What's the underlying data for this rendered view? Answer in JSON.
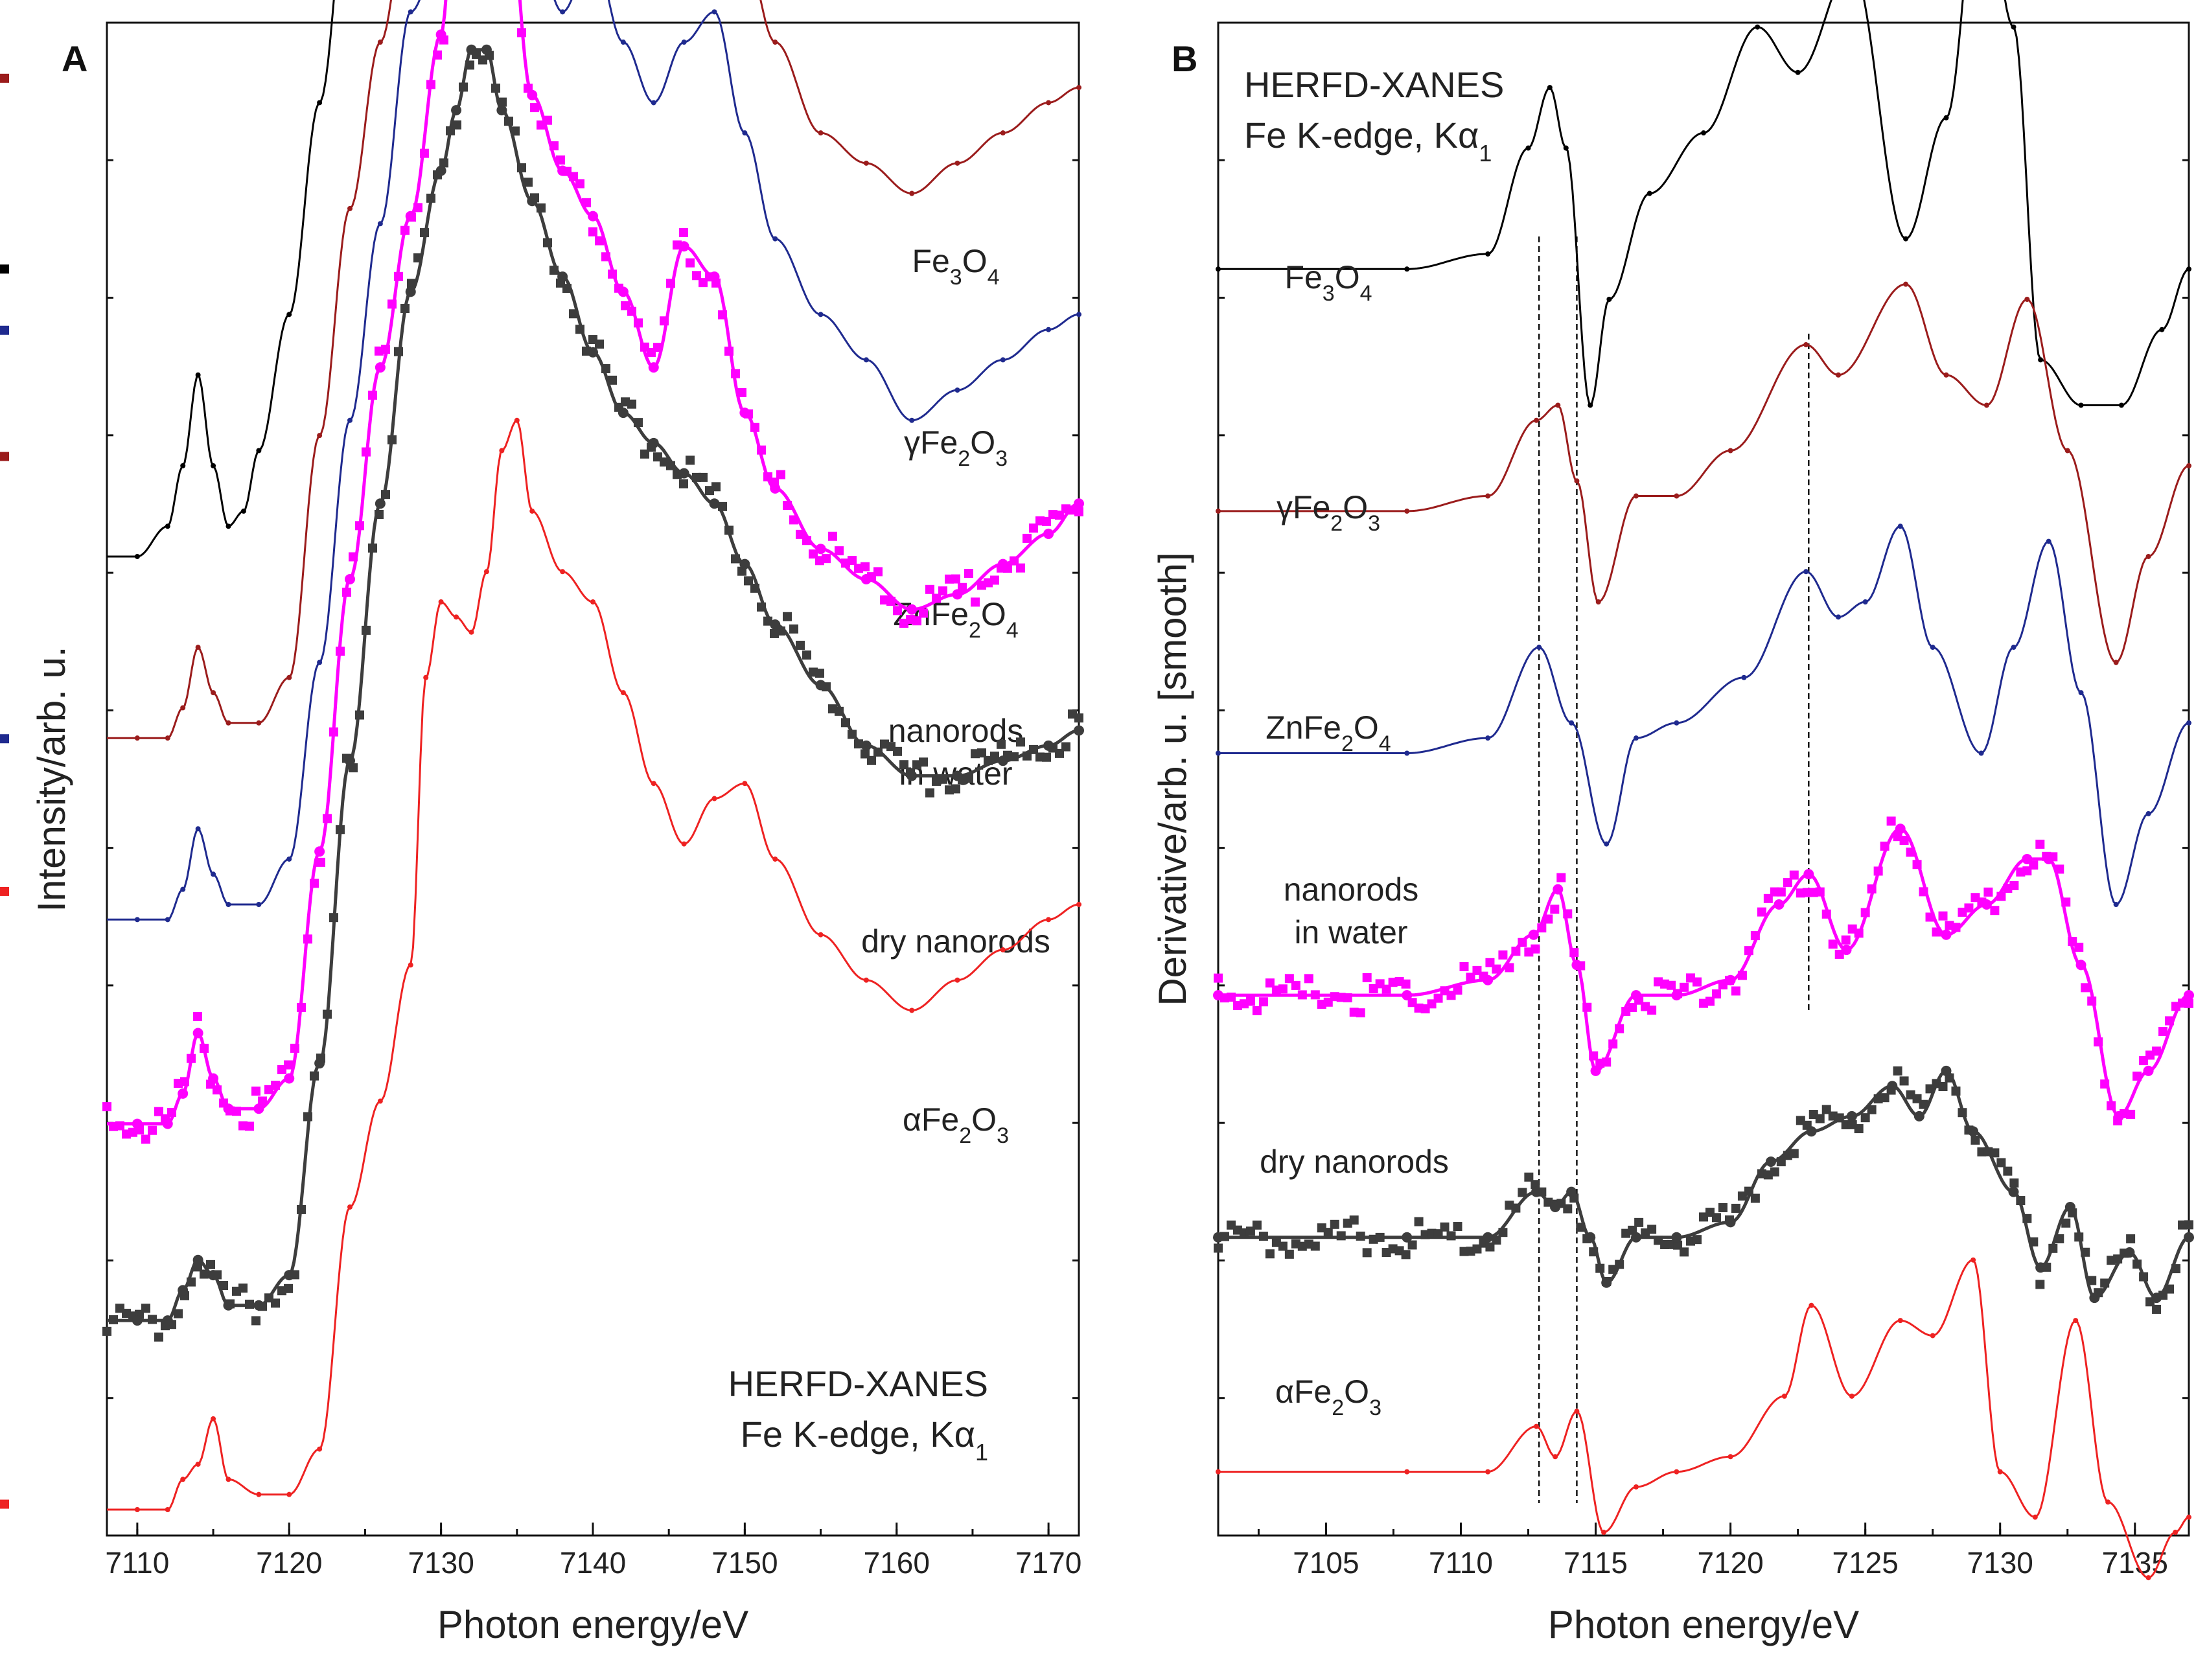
{
  "chart_data": [
    {
      "panel": "A",
      "type": "line",
      "xlabel": "Photon energy/eV",
      "ylabel": "Intensity/arb. u.",
      "xlim": [
        7108,
        7172
      ],
      "xticks": [
        7110,
        7120,
        7130,
        7140,
        7150,
        7160,
        7170
      ],
      "annotation": [
        "HERFD-XANES",
        "Fe K-edge, Kα",
        "1"
      ],
      "series": [
        {
          "label": {
            "main": "Fe",
            "sub": [
              "3",
              "4"
            ],
            "parts": [
              "Fe",
              "3",
              "O",
              "4"
            ]
          },
          "color": "#000000",
          "marker": "small-dot",
          "offset": 0.63,
          "x": [
            7110,
            7112,
            7113,
            7114,
            7115,
            7116,
            7117,
            7118,
            7120,
            7122,
            7124,
            7126,
            7128,
            7129,
            7130,
            7131,
            7132,
            7133,
            7134,
            7136,
            7138,
            7140,
            7142,
            7144,
            7146,
            7148,
            7150,
            7152,
            7155,
            7158,
            7161,
            7164,
            7167,
            7170,
            7172
          ],
          "y": [
            0,
            0.02,
            0.06,
            0.12,
            0.06,
            0.02,
            0.03,
            0.07,
            0.16,
            0.3,
            0.45,
            0.58,
            0.66,
            0.8,
            0.95,
            0.98,
            0.9,
            0.8,
            0.72,
            0.62,
            0.62,
            0.58,
            0.55,
            0.58,
            0.59,
            0.56,
            0.49,
            0.45,
            0.42,
            0.41,
            0.38,
            0.39,
            0.4,
            0.41,
            0.42
          ]
        },
        {
          "label": {
            "main": "γFe",
            "sub": [
              "2",
              "3"
            ],
            "parts": [
              "γFe",
              "2",
              "O",
              "3"
            ]
          },
          "color": "#9b1c1c",
          "marker": "small-dot",
          "offset": 0.51,
          "x": [
            7110,
            7112,
            7113,
            7114,
            7115,
            7116,
            7118,
            7120,
            7122,
            7124,
            7126,
            7128,
            7130,
            7131,
            7132,
            7133,
            7134,
            7136,
            7138,
            7140,
            7142,
            7144,
            7146,
            7148,
            7150,
            7152,
            7155,
            7158,
            7161,
            7164,
            7167,
            7170,
            7172
          ],
          "y": [
            0,
            0,
            0.02,
            0.06,
            0.03,
            0.01,
            0.01,
            0.04,
            0.2,
            0.35,
            0.46,
            0.56,
            0.7,
            0.8,
            0.92,
            0.96,
            0.88,
            0.72,
            0.62,
            0.63,
            0.56,
            0.53,
            0.56,
            0.58,
            0.52,
            0.46,
            0.4,
            0.38,
            0.36,
            0.38,
            0.4,
            0.42,
            0.43
          ]
        },
        {
          "label": {
            "main": "ZnFe",
            "sub": [
              "2",
              "4"
            ],
            "parts": [
              "ZnFe",
              "2",
              "O",
              "4"
            ]
          },
          "color": "#1f2a8f",
          "marker": "small-dot",
          "offset": 0.39,
          "x": [
            7110,
            7112,
            7113,
            7114,
            7115,
            7116,
            7118,
            7120,
            7122,
            7124,
            7126,
            7128,
            7130,
            7131,
            7132,
            7133,
            7134,
            7136,
            7138,
            7140,
            7142,
            7144,
            7146,
            7148,
            7150,
            7152,
            7155,
            7158,
            7161,
            7164,
            7167,
            7170,
            7172
          ],
          "y": [
            0,
            0,
            0.02,
            0.06,
            0.03,
            0.01,
            0.01,
            0.04,
            0.17,
            0.33,
            0.46,
            0.6,
            0.64,
            0.72,
            0.93,
            0.96,
            0.88,
            0.65,
            0.6,
            0.64,
            0.58,
            0.54,
            0.58,
            0.6,
            0.52,
            0.45,
            0.4,
            0.37,
            0.33,
            0.35,
            0.37,
            0.39,
            0.4
          ]
        },
        {
          "label": {
            "main": "nanorods",
            "line2": "in water"
          },
          "color": "#ff00ff",
          "marker": "square",
          "offset": 0.255,
          "x": [
            7110,
            7112,
            7113,
            7114,
            7115,
            7116,
            7118,
            7120,
            7122,
            7124,
            7126,
            7128,
            7130,
            7131,
            7132,
            7133,
            7134,
            7136,
            7138,
            7140,
            7142,
            7144,
            7146,
            7148,
            7150,
            7152,
            7155,
            7158,
            7161,
            7164,
            7167,
            7170,
            7172
          ],
          "y": [
            0,
            0,
            0.02,
            0.06,
            0.03,
            0.01,
            0.01,
            0.03,
            0.18,
            0.36,
            0.5,
            0.6,
            0.72,
            0.82,
            0.92,
            0.96,
            0.86,
            0.68,
            0.63,
            0.6,
            0.55,
            0.5,
            0.58,
            0.56,
            0.47,
            0.42,
            0.38,
            0.36,
            0.34,
            0.35,
            0.37,
            0.39,
            0.41
          ]
        },
        {
          "label": {
            "main": "dry nanorods"
          },
          "color": "#3d3d3d",
          "marker": "square",
          "offset": 0.125,
          "x": [
            7110,
            7112,
            7113,
            7114,
            7115,
            7116,
            7118,
            7120,
            7122,
            7124,
            7126,
            7128,
            7130,
            7131,
            7132,
            7133,
            7134,
            7136,
            7138,
            7140,
            7142,
            7144,
            7146,
            7148,
            7150,
            7152,
            7155,
            7158,
            7161,
            7164,
            7167,
            7170,
            7172
          ],
          "y": [
            0,
            0,
            0.02,
            0.04,
            0.03,
            0.01,
            0.01,
            0.03,
            0.17,
            0.37,
            0.54,
            0.68,
            0.76,
            0.8,
            0.84,
            0.84,
            0.8,
            0.74,
            0.69,
            0.64,
            0.6,
            0.58,
            0.56,
            0.54,
            0.5,
            0.46,
            0.42,
            0.38,
            0.36,
            0.36,
            0.37,
            0.38,
            0.39
          ]
        },
        {
          "label": {
            "main": "αFe",
            "sub": [
              "2",
              "3"
            ],
            "parts": [
              "αFe",
              "2",
              "O",
              "3"
            ]
          },
          "color": "#ee2222",
          "marker": "small-dot",
          "offset": 0.0,
          "x": [
            7110,
            7112,
            7113,
            7114,
            7115,
            7116,
            7118,
            7120,
            7122,
            7124,
            7126,
            7128,
            7129,
            7130,
            7131,
            7132,
            7133,
            7134,
            7135,
            7136,
            7138,
            7140,
            7142,
            7144,
            7146,
            7148,
            7150,
            7152,
            7155,
            7158,
            7161,
            7164,
            7167,
            7170,
            7172
          ],
          "y": [
            0,
            0,
            0.02,
            0.03,
            0.06,
            0.02,
            0.01,
            0.01,
            0.04,
            0.2,
            0.27,
            0.36,
            0.55,
            0.6,
            0.59,
            0.58,
            0.62,
            0.7,
            0.72,
            0.66,
            0.62,
            0.6,
            0.54,
            0.48,
            0.44,
            0.47,
            0.48,
            0.43,
            0.38,
            0.35,
            0.33,
            0.35,
            0.37,
            0.39,
            0.4
          ]
        }
      ]
    },
    {
      "panel": "B",
      "type": "line",
      "xlabel": "Photon energy/eV",
      "ylabel": "Derivative/arb. u. [smooth]",
      "xlim": [
        7101,
        7137
      ],
      "xticks": [
        7105,
        7110,
        7115,
        7120,
        7125,
        7130,
        7135
      ],
      "annotation": [
        "HERFD-XANES",
        "Fe K-edge, Kα",
        "1"
      ],
      "reference_lines": [
        7112.9,
        7114.3,
        7122.9
      ],
      "series": [
        {
          "label": {
            "main": "Fe",
            "sub": [
              "3",
              "4"
            ],
            "parts": [
              "Fe",
              "3",
              "O",
              "4"
            ]
          },
          "color": "#000000",
          "marker": "small-dot",
          "offset": 0.82,
          "x": [
            7101,
            7108,
            7111,
            7112.5,
            7113.3,
            7113.9,
            7114.8,
            7115.5,
            7117,
            7119,
            7121,
            7122.5,
            7124.5,
            7126.5,
            7128,
            7129.3,
            7130.5,
            7131.5,
            7133,
            7134.5,
            7136,
            7137
          ],
          "y": [
            0,
            0,
            0.01,
            0.08,
            0.12,
            0.08,
            -0.09,
            -0.02,
            0.05,
            0.09,
            0.16,
            0.13,
            0.2,
            0.02,
            0.1,
            0.27,
            0.16,
            -0.06,
            -0.09,
            -0.09,
            -0.04,
            0.0
          ]
        },
        {
          "label": {
            "main": "γFe",
            "sub": [
              "2",
              "3"
            ],
            "parts": [
              "γFe",
              "2",
              "O",
              "3"
            ]
          },
          "color": "#9b1c1c",
          "marker": "small-dot",
          "offset": 0.66,
          "x": [
            7101,
            7108,
            7111,
            7112.8,
            7113.6,
            7114.3,
            7115.1,
            7116.5,
            7118,
            7120,
            7122.8,
            7124,
            7126.5,
            7128,
            7129.5,
            7131,
            7132.5,
            7134.3,
            7135.5,
            7137
          ],
          "y": [
            0,
            0,
            0.01,
            0.06,
            0.07,
            0.02,
            -0.06,
            0.01,
            0.01,
            0.04,
            0.11,
            0.09,
            0.15,
            0.09,
            0.07,
            0.14,
            0.04,
            -0.1,
            -0.03,
            0.03
          ]
        },
        {
          "label": {
            "main": "ZnFe",
            "sub": [
              "2",
              "4"
            ],
            "parts": [
              "ZnFe",
              "2",
              "O",
              "4"
            ]
          },
          "color": "#1f2a8f",
          "marker": "small-dot",
          "offset": 0.5,
          "x": [
            7101,
            7108,
            7111,
            7112.9,
            7114.1,
            7115.4,
            7116.5,
            7118,
            7120.5,
            7122.8,
            7124,
            7125,
            7126.3,
            7127.5,
            7129.3,
            7130.5,
            7131.8,
            7133,
            7134.3,
            7135.5,
            7137
          ],
          "y": [
            0,
            0,
            0.01,
            0.07,
            0.02,
            -0.06,
            0.01,
            0.02,
            0.05,
            0.12,
            0.09,
            0.1,
            0.15,
            0.07,
            0.0,
            0.07,
            0.14,
            0.04,
            -0.1,
            -0.04,
            0.02
          ]
        },
        {
          "label": {
            "main": "nanorods",
            "line2": "in water"
          },
          "color": "#ff00ff",
          "marker": "square",
          "offset": 0.34,
          "x": [
            7101,
            7108,
            7111,
            7112.7,
            7113.6,
            7114.3,
            7115,
            7116.5,
            7118,
            7120,
            7121.8,
            7122.9,
            7124.3,
            7126.3,
            7128,
            7129.5,
            7131,
            7131.8,
            7133,
            7134.4,
            7135.5,
            7137
          ],
          "y": [
            0,
            0,
            0.01,
            0.04,
            0.07,
            0.02,
            -0.05,
            0.0,
            0.0,
            0.01,
            0.06,
            0.08,
            0.03,
            0.11,
            0.04,
            0.06,
            0.09,
            0.09,
            0.02,
            -0.08,
            -0.05,
            0.0
          ]
        },
        {
          "label": {
            "main": "dry nanorods"
          },
          "color": "#3d3d3d",
          "marker": "square",
          "offset": 0.18,
          "x": [
            7101,
            7108,
            7111,
            7112.8,
            7113.5,
            7114.1,
            7114.8,
            7115.4,
            7116.5,
            7118,
            7120,
            7121.5,
            7123,
            7124.5,
            7126,
            7127,
            7128,
            7129,
            7130.5,
            7131.5,
            7132.6,
            7133.5,
            7134.8,
            7135.8,
            7137
          ],
          "y": [
            0,
            0,
            0.0,
            0.03,
            0.02,
            0.03,
            0.0,
            -0.03,
            0.0,
            0.0,
            0.01,
            0.05,
            0.07,
            0.08,
            0.1,
            0.08,
            0.11,
            0.07,
            0.03,
            -0.02,
            0.02,
            -0.04,
            -0.01,
            -0.04,
            0.0
          ]
        },
        {
          "label": {
            "main": "αFe",
            "sub": [
              "2",
              "3"
            ],
            "parts": [
              "αFe",
              "2",
              "O",
              "3"
            ]
          },
          "color": "#ee2222",
          "marker": "small-dot",
          "offset": 0.025,
          "x": [
            7101,
            7108,
            7111,
            7112.8,
            7113.5,
            7114.3,
            7115.3,
            7116.5,
            7118,
            7120,
            7122,
            7123,
            7124.5,
            7126.3,
            7127.5,
            7129,
            7130,
            7131.3,
            7132.8,
            7134,
            7135.5,
            7136.5,
            7137
          ],
          "y": [
            0,
            0,
            0.0,
            0.03,
            0.01,
            0.04,
            -0.04,
            -0.01,
            0.0,
            0.01,
            0.05,
            0.11,
            0.05,
            0.1,
            0.09,
            0.14,
            0.0,
            -0.03,
            0.1,
            -0.02,
            -0.07,
            -0.04,
            -0.03
          ]
        }
      ]
    }
  ]
}
